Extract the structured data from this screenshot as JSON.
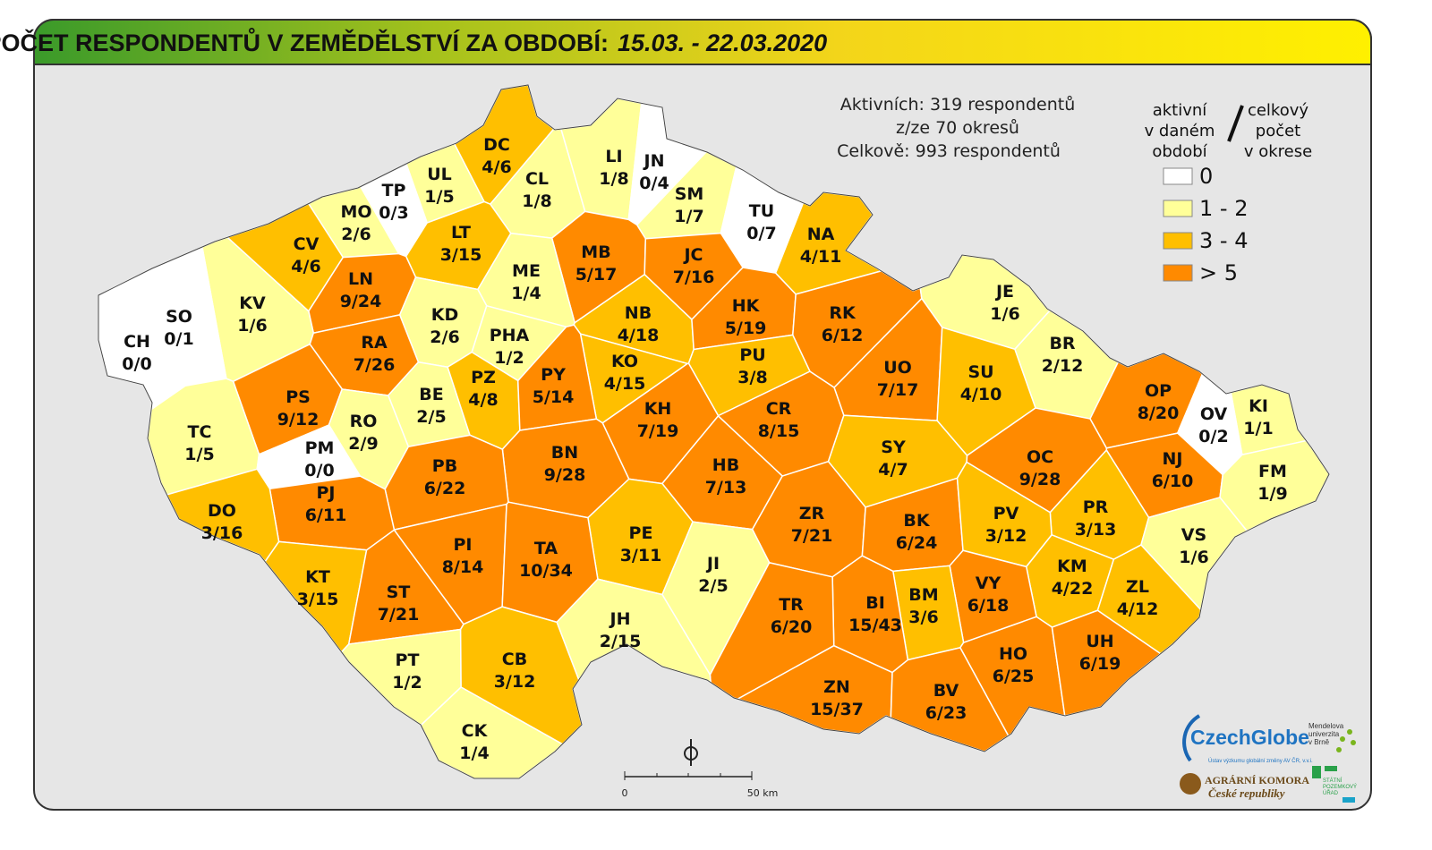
{
  "header": {
    "title": "POČET RESPONDENTŮ V ZEMĚDĚLSTVÍ ZA OBDOBÍ:",
    "period": "15.03. - 22.03.2020"
  },
  "info": [
    "Aktivních: 319 respondentů",
    "z/ze 70 okresů",
    "Celkově: 993 respondentů"
  ],
  "legend": {
    "heading_left": [
      "aktivní",
      "v daném",
      "období"
    ],
    "heading_right": [
      "celkový",
      "počet",
      "v okrese"
    ],
    "items": [
      {
        "label": "0",
        "color": "#ffffff"
      },
      {
        "label": "1 - 2",
        "color": "#ffff99"
      },
      {
        "label": "3 - 4",
        "color": "#ffbf00"
      },
      {
        "label": "> 5",
        "color": "#ff8a00"
      }
    ]
  },
  "scale": {
    "start": "0",
    "end": "50 km"
  },
  "logos": {
    "czechglobe": "CzechGlobe",
    "czechglobe_sub": "Ústav výzkumu globální změny AV ČR, v.v.i.",
    "mendelu": [
      "Mendelova",
      "univerzita",
      "v Brně"
    ],
    "agrarni": [
      "AGRÁRNÍ KOMORA",
      "České republiky"
    ],
    "spu": [
      "STÁTNÍ",
      "POZEMKOVÝ",
      "ÚŘAD"
    ]
  },
  "districts": [
    {
      "code": "DC",
      "value": "4/6",
      "color": "#ffbf00"
    },
    {
      "code": "CL",
      "value": "1/8",
      "color": "#ffff99"
    },
    {
      "code": "LI",
      "value": "1/8",
      "color": "#ffff99"
    },
    {
      "code": "JN",
      "value": "0/4",
      "color": "#ffffff"
    },
    {
      "code": "UL",
      "value": "1/5",
      "color": "#ffff99"
    },
    {
      "code": "TP",
      "value": "0/3",
      "color": "#ffffff"
    },
    {
      "code": "MO",
      "value": "2/6",
      "color": "#ffff99"
    },
    {
      "code": "SM",
      "value": "1/7",
      "color": "#ffff99"
    },
    {
      "code": "TU",
      "value": "0/7",
      "color": "#ffffff"
    },
    {
      "code": "NA",
      "value": "4/11",
      "color": "#ffbf00"
    },
    {
      "code": "CV",
      "value": "4/6",
      "color": "#ffbf00"
    },
    {
      "code": "LT",
      "value": "3/15",
      "color": "#ffbf00"
    },
    {
      "code": "MB",
      "value": "5/17",
      "color": "#ff8a00"
    },
    {
      "code": "JC",
      "value": "7/16",
      "color": "#ff8a00"
    },
    {
      "code": "ME",
      "value": "1/4",
      "color": "#ffff99"
    },
    {
      "code": "LN",
      "value": "9/24",
      "color": "#ff8a00"
    },
    {
      "code": "KV",
      "value": "1/6",
      "color": "#ffff99"
    },
    {
      "code": "SO",
      "value": "0/1",
      "color": "#ffffff"
    },
    {
      "code": "CH",
      "value": "0/0",
      "color": "#ffffff"
    },
    {
      "code": "KD",
      "value": "2/6",
      "color": "#ffff99"
    },
    {
      "code": "NB",
      "value": "4/18",
      "color": "#ffbf00"
    },
    {
      "code": "HK",
      "value": "5/19",
      "color": "#ff8a00"
    },
    {
      "code": "RK",
      "value": "6/12",
      "color": "#ff8a00"
    },
    {
      "code": "JE",
      "value": "1/6",
      "color": "#ffff99"
    },
    {
      "code": "RA",
      "value": "7/26",
      "color": "#ff8a00"
    },
    {
      "code": "PHA",
      "value": "1/2",
      "color": "#ffff99"
    },
    {
      "code": "PU",
      "value": "3/8",
      "color": "#ffbf00"
    },
    {
      "code": "BR",
      "value": "2/12",
      "color": "#ffff99"
    },
    {
      "code": "KO",
      "value": "4/15",
      "color": "#ffbf00"
    },
    {
      "code": "UO",
      "value": "7/17",
      "color": "#ff8a00"
    },
    {
      "code": "SU",
      "value": "4/10",
      "color": "#ffbf00"
    },
    {
      "code": "PS",
      "value": "9/12",
      "color": "#ff8a00"
    },
    {
      "code": "BE",
      "value": "2/5",
      "color": "#ffff99"
    },
    {
      "code": "PZ",
      "value": "4/8",
      "color": "#ffbf00"
    },
    {
      "code": "PY",
      "value": "5/14",
      "color": "#ff8a00"
    },
    {
      "code": "OP",
      "value": "8/20",
      "color": "#ff8a00"
    },
    {
      "code": "KI",
      "value": "1/1",
      "color": "#ffff99"
    },
    {
      "code": "OV",
      "value": "0/2",
      "color": "#ffffff"
    },
    {
      "code": "TC",
      "value": "1/5",
      "color": "#ffff99"
    },
    {
      "code": "RO",
      "value": "2/9",
      "color": "#ffff99"
    },
    {
      "code": "KH",
      "value": "7/19",
      "color": "#ff8a00"
    },
    {
      "code": "CR",
      "value": "8/15",
      "color": "#ff8a00"
    },
    {
      "code": "SY",
      "value": "4/7",
      "color": "#ffbf00"
    },
    {
      "code": "PM",
      "value": "0/0",
      "color": "#ffffff"
    },
    {
      "code": "BN",
      "value": "9/28",
      "color": "#ff8a00"
    },
    {
      "code": "OC",
      "value": "9/28",
      "color": "#ff8a00"
    },
    {
      "code": "NJ",
      "value": "6/10",
      "color": "#ff8a00"
    },
    {
      "code": "FM",
      "value": "1/9",
      "color": "#ffff99"
    },
    {
      "code": "PB",
      "value": "6/22",
      "color": "#ff8a00"
    },
    {
      "code": "HB",
      "value": "7/13",
      "color": "#ff8a00"
    },
    {
      "code": "PJ",
      "value": "6/11",
      "color": "#ff8a00"
    },
    {
      "code": "DO",
      "value": "3/16",
      "color": "#ffbf00"
    },
    {
      "code": "ZR",
      "value": "7/21",
      "color": "#ff8a00"
    },
    {
      "code": "BK",
      "value": "6/24",
      "color": "#ff8a00"
    },
    {
      "code": "PR",
      "value": "3/13",
      "color": "#ffbf00"
    },
    {
      "code": "PV",
      "value": "3/12",
      "color": "#ffbf00"
    },
    {
      "code": "VS",
      "value": "1/6",
      "color": "#ffff99"
    },
    {
      "code": "PE",
      "value": "3/11",
      "color": "#ffbf00"
    },
    {
      "code": "JI",
      "value": "2/5",
      "color": "#ffff99"
    },
    {
      "code": "PI",
      "value": "8/14",
      "color": "#ff8a00"
    },
    {
      "code": "TA",
      "value": "10/34",
      "color": "#ff8a00"
    },
    {
      "code": "KM",
      "value": "4/22",
      "color": "#ffbf00"
    },
    {
      "code": "KT",
      "value": "3/15",
      "color": "#ffbf00"
    },
    {
      "code": "ZL",
      "value": "4/12",
      "color": "#ffbf00"
    },
    {
      "code": "VY",
      "value": "6/18",
      "color": "#ff8a00"
    },
    {
      "code": "BM",
      "value": "3/6",
      "color": "#ffbf00"
    },
    {
      "code": "ST",
      "value": "7/21",
      "color": "#ff8a00"
    },
    {
      "code": "BI",
      "value": "15/43",
      "color": "#ff8a00"
    },
    {
      "code": "TR",
      "value": "6/20",
      "color": "#ff8a00"
    },
    {
      "code": "JH",
      "value": "2/15",
      "color": "#ffff99"
    },
    {
      "code": "HO",
      "value": "6/25",
      "color": "#ff8a00"
    },
    {
      "code": "UH",
      "value": "6/19",
      "color": "#ff8a00"
    },
    {
      "code": "PT",
      "value": "1/2",
      "color": "#ffff99"
    },
    {
      "code": "CB",
      "value": "3/12",
      "color": "#ffbf00"
    },
    {
      "code": "ZN",
      "value": "15/37",
      "color": "#ff8a00"
    },
    {
      "code": "BV",
      "value": "6/23",
      "color": "#ff8a00"
    },
    {
      "code": "CK",
      "value": "1/4",
      "color": "#ffff99"
    }
  ]
}
